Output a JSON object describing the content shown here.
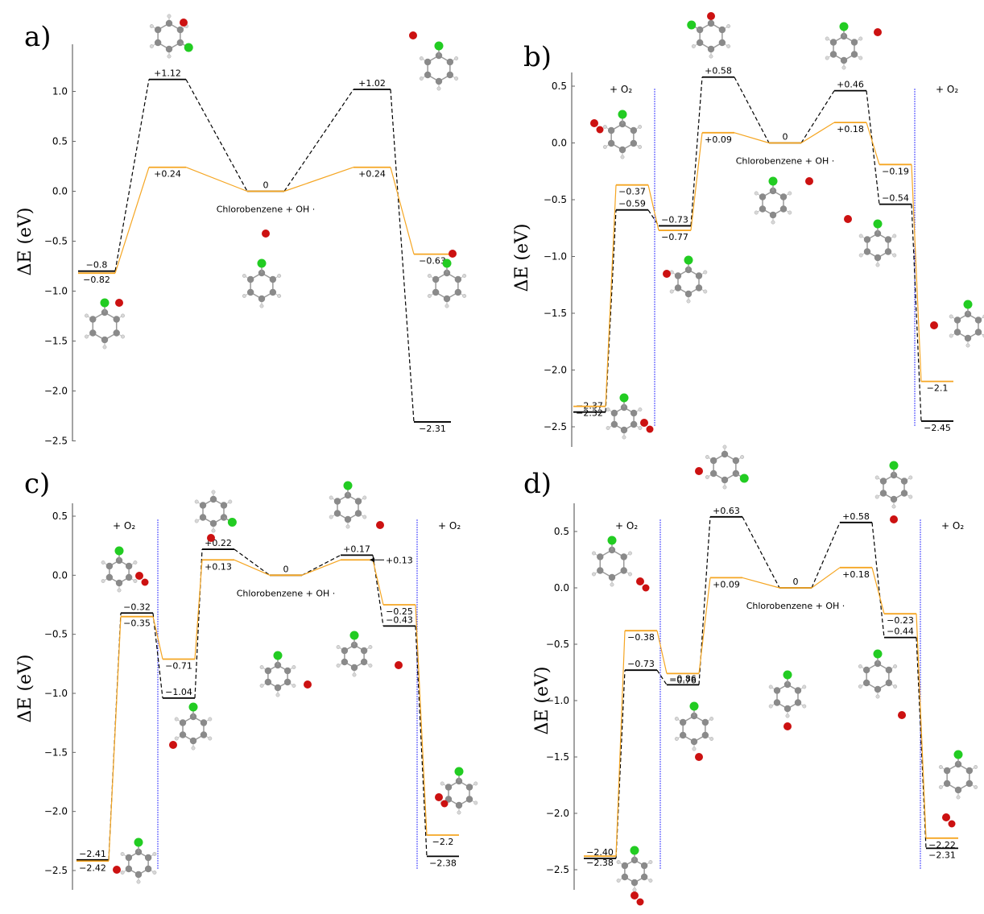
{
  "figure": {
    "ylabel": "ΔE (eV)",
    "colors": {
      "black_path": "#000000",
      "orange_path": "#f5a623",
      "boundary": "#3b3bff",
      "cl_atom": "#22cc22",
      "o_atom": "#cc1111",
      "c_atom": "#8a8a8a",
      "h_atom": "#d8d8d8"
    }
  },
  "chart_data": [
    {
      "type": "line",
      "panel": "a)",
      "ylabel": "ΔE (eV)",
      "ylim": [
        -2.5,
        1.25
      ],
      "yticks": [
        1.0,
        0.5,
        0.0,
        -0.5,
        -1.0,
        -1.5,
        -2.0,
        -2.5
      ],
      "ytick_labels": [
        "1.0",
        "0.5",
        "0.0",
        "−0.5",
        "−1.0",
        "−1.5",
        "−2.0",
        "−2.5"
      ],
      "x_slots": [
        0,
        1,
        2,
        3,
        4
      ],
      "center_label": "Chlorobenzene + OH ·",
      "boundaries": [],
      "series": [
        {
          "color": "black",
          "values": [
            -0.8,
            1.12,
            0,
            1.02,
            -2.31
          ],
          "labels": [
            "−0.8",
            "+1.12",
            "0",
            "+1.02",
            "−2.31"
          ]
        },
        {
          "color": "orange",
          "values": [
            -0.82,
            0.24,
            0,
            0.24,
            -0.63
          ],
          "labels": [
            "−0.82",
            "+0.24",
            "",
            "+0.24",
            "−0.63"
          ]
        }
      ],
      "annotations": []
    },
    {
      "type": "line",
      "panel": "b)",
      "ylabel": "ΔE (eV)",
      "ylim": [
        -2.5,
        0.6
      ],
      "yticks": [
        0.5,
        0.0,
        -0.5,
        -1.0,
        -1.5,
        -2.0,
        -2.5
      ],
      "ytick_labels": [
        "0.5",
        "0.0",
        "−0.5",
        "−1.0",
        "−1.5",
        "−2.0",
        "−2.5"
      ],
      "x_slots": [
        0,
        1,
        2,
        3,
        4,
        5,
        6,
        7,
        8
      ],
      "center_label": "Chlorobenzene + OH ·",
      "boundaries": [
        {
          "after_slot": 1,
          "label": "+ O₂"
        },
        {
          "after_slot": 7,
          "label": "+ O₂"
        }
      ],
      "series": [
        {
          "color": "black",
          "values": [
            -2.37,
            -0.59,
            -0.73,
            0.58,
            0,
            0.46,
            -0.54,
            -2.45
          ],
          "slots": [
            0,
            1,
            2,
            3,
            4,
            5,
            6,
            8
          ],
          "labels": [
            "−2.37",
            "−0.59",
            "−0.73",
            "+0.58",
            "0",
            "+0.46",
            "−0.54",
            "−2.45"
          ]
        },
        {
          "color": "orange",
          "values": [
            -2.32,
            -0.37,
            -0.77,
            0.09,
            0,
            0.18,
            -0.19,
            -2.1
          ],
          "slots": [
            0,
            1,
            2,
            3,
            4,
            5,
            6,
            8
          ],
          "labels": [
            "−2.32",
            "−0.37",
            "−0.77",
            "+0.09",
            "",
            "+0.18",
            "−0.19",
            "−2.1"
          ]
        }
      ],
      "annotations": []
    },
    {
      "type": "line",
      "panel": "c)",
      "ylabel": "ΔE (eV)",
      "ylim": [
        -2.5,
        0.5
      ],
      "yticks": [
        0.5,
        0.0,
        -0.5,
        -1.0,
        -1.5,
        -2.0,
        -2.5
      ],
      "ytick_labels": [
        "0.5",
        "0.0",
        "−0.5",
        "−1.0",
        "−1.5",
        "−2.0",
        "−2.5"
      ],
      "x_slots": [
        0,
        1,
        2,
        3,
        4,
        5,
        6,
        7,
        8
      ],
      "center_label": "Chlorobenzene + OH ·",
      "boundaries": [
        {
          "after_slot": 1,
          "label": "+ O₂"
        },
        {
          "after_slot": 7,
          "label": "+ O₂"
        }
      ],
      "series": [
        {
          "color": "black",
          "values": [
            -2.41,
            -0.32,
            -1.04,
            0.22,
            0,
            0.17,
            -0.43,
            -2.38
          ],
          "slots": [
            0,
            1,
            2,
            3,
            4,
            5,
            6,
            8
          ],
          "labels": [
            "−2.41",
            "−0.32",
            "−1.04",
            "+0.22",
            "0",
            "+0.17",
            "−0.43",
            "−2.38"
          ]
        },
        {
          "color": "orange",
          "values": [
            -2.42,
            -0.35,
            -0.71,
            0.13,
            0,
            0.13,
            -0.25,
            -2.2
          ],
          "slots": [
            0,
            1,
            2,
            3,
            4,
            5,
            6,
            8
          ],
          "labels": [
            "−2.42",
            "−0.35",
            "−0.71",
            "+0.13",
            "",
            "",
            "−0.25",
            "−2.2"
          ]
        }
      ],
      "annotations": [
        {
          "label": "+0.13",
          "arrow": true
        }
      ]
    },
    {
      "type": "line",
      "panel": "d)",
      "ylabel": "ΔE (eV)",
      "ylim": [
        -2.5,
        0.7
      ],
      "yticks": [
        0.5,
        0.0,
        -0.5,
        -1.0,
        -1.5,
        -2.0,
        -2.5
      ],
      "ytick_labels": [
        "0.5",
        "0.0",
        "−0.5",
        "−1.0",
        "−1.5",
        "−2.0",
        "−2.5"
      ],
      "x_slots": [
        0,
        1,
        2,
        3,
        4,
        5,
        6,
        7,
        8
      ],
      "center_label": "Chlorobenzene + OH ·",
      "boundaries": [
        {
          "after_slot": 1,
          "label": "+ O₂"
        },
        {
          "after_slot": 7,
          "label": "+ O₂"
        }
      ],
      "series": [
        {
          "color": "black",
          "values": [
            -2.4,
            -0.73,
            -0.86,
            0.63,
            0,
            0.58,
            -0.44,
            -2.31
          ],
          "slots": [
            0,
            1,
            2,
            3,
            4,
            5,
            6,
            8
          ],
          "labels": [
            "−2.40",
            "−0.73",
            "−0.86",
            "+0.63",
            "0",
            "+0.58",
            "−0.44",
            "−2.31"
          ]
        },
        {
          "color": "orange",
          "values": [
            -2.38,
            -0.38,
            -0.76,
            0.09,
            0,
            0.18,
            -0.23,
            -2.22
          ],
          "slots": [
            0,
            1,
            2,
            3,
            4,
            5,
            6,
            8
          ],
          "labels": [
            "−2.38",
            "−0.38",
            "−0.76",
            "+0.09",
            "",
            "+0.18",
            "−0.23",
            "−2.22"
          ]
        }
      ],
      "annotations": []
    }
  ]
}
